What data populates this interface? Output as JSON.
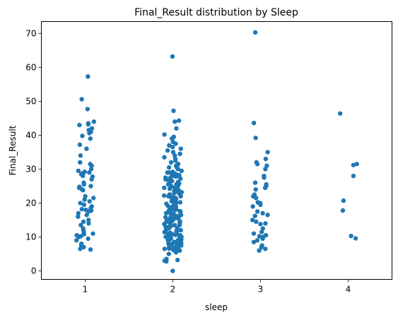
{
  "chart_data": {
    "type": "scatter",
    "subtype": "strip",
    "title": "Final_Result  distribution by Sleep",
    "xlabel": "sleep",
    "ylabel": "Final_Result",
    "categories": [
      "1",
      "2",
      "3",
      "4"
    ],
    "xticks": [
      "1",
      "2",
      "3",
      "4"
    ],
    "yticks": [
      "0",
      "10",
      "20",
      "30",
      "40",
      "50",
      "60",
      "70"
    ],
    "ylim": [
      -2.5,
      73.5
    ],
    "grid": false,
    "legend": "none",
    "color": "#1f77b4",
    "series": [
      {
        "category": "1",
        "values": [
          57.3,
          50.6,
          47.7,
          44.0,
          43.5,
          43.2,
          43.0,
          42.0,
          41.5,
          41.0,
          40.6,
          39.8,
          39.0,
          37.2,
          36.0,
          34.0,
          32.0,
          31.5,
          31.0,
          30.0,
          29.5,
          29.2,
          29.0,
          28.8,
          28.5,
          28.0,
          27.8,
          27.0,
          26.0,
          25.5,
          25.0,
          24.8,
          24.5,
          24.0,
          23.8,
          22.0,
          21.5,
          21.0,
          20.5,
          20.0,
          19.5,
          19.0,
          18.5,
          18.2,
          18.0,
          17.8,
          17.5,
          17.0,
          16.5,
          16.0,
          15.0,
          14.5,
          14.0,
          13.5,
          12.5,
          12.0,
          11.5,
          11.0,
          10.8,
          10.5,
          10.2,
          10.0,
          9.5,
          9.0,
          8.0,
          7.5,
          7.0,
          6.5,
          6.3
        ]
      },
      {
        "category": "2",
        "values": [
          63.2,
          47.2,
          44.3,
          44.0,
          42.0,
          40.2,
          39.5,
          39.0,
          38.0,
          37.5,
          37.0,
          36.5,
          36.0,
          35.5,
          35.0,
          34.5,
          34.0,
          33.5,
          33.0,
          32.5,
          32.0,
          31.5,
          31.0,
          30.5,
          30.0,
          29.5,
          29.2,
          29.0,
          28.8,
          28.5,
          28.2,
          28.0,
          27.8,
          27.5,
          27.2,
          27.0,
          26.8,
          26.5,
          26.2,
          26.0,
          25.8,
          25.5,
          25.2,
          25.0,
          24.8,
          24.5,
          24.2,
          24.0,
          23.8,
          23.5,
          23.2,
          23.0,
          22.8,
          22.5,
          22.2,
          22.0,
          21.8,
          21.5,
          21.2,
          21.0,
          20.8,
          20.5,
          20.2,
          20.0,
          19.8,
          19.5,
          19.2,
          19.0,
          18.8,
          18.5,
          18.2,
          18.0,
          17.8,
          17.5,
          17.2,
          17.0,
          16.8,
          16.5,
          16.2,
          16.0,
          15.8,
          15.5,
          15.2,
          15.0,
          14.8,
          14.5,
          14.2,
          14.0,
          13.8,
          13.5,
          13.2,
          13.0,
          12.8,
          12.5,
          12.2,
          12.0,
          11.8,
          11.5,
          11.2,
          11.0,
          10.8,
          10.5,
          10.2,
          10.0,
          9.8,
          9.5,
          9.2,
          9.0,
          8.8,
          8.5,
          8.2,
          8.0,
          7.8,
          7.5,
          7.2,
          7.0,
          6.8,
          6.5,
          6.2,
          6.0,
          5.5,
          5.0,
          3.5,
          3.2,
          3.0,
          2.8,
          0.0,
          28.5,
          27.5,
          25.5,
          24.5,
          23.5,
          22.5,
          21.5,
          20.5,
          19.5,
          18.5,
          17.5,
          16.5,
          15.5,
          14.5,
          13.5,
          12.5,
          11.5,
          10.5,
          9.5,
          8.5,
          7.5,
          6.5,
          17.0,
          16.0,
          15.0,
          14.0,
          13.0,
          12.0,
          11.0,
          10.0,
          9.0,
          8.0,
          7.0,
          6.0,
          29.0,
          24.0,
          20.0,
          18.0,
          16.2,
          15.8,
          14.6,
          12.6,
          11.4,
          10.6,
          6.6,
          6.4,
          30.5,
          22.0,
          19.0,
          17.6
        ]
      },
      {
        "category": "3",
        "values": [
          70.3,
          43.6,
          39.2,
          35.0,
          33.0,
          32.0,
          31.5,
          31.0,
          30.0,
          28.0,
          27.5,
          26.0,
          25.5,
          25.0,
          24.5,
          24.0,
          22.5,
          22.0,
          21.5,
          20.2,
          20.0,
          19.5,
          19.0,
          17.5,
          17.0,
          16.5,
          16.2,
          15.0,
          14.5,
          14.0,
          13.8,
          12.5,
          11.5,
          11.0,
          10.5,
          10.2,
          10.0,
          9.5,
          9.0,
          8.5,
          7.5,
          7.0,
          6.5,
          6.0
        ]
      },
      {
        "category": "4",
        "values": [
          46.4,
          31.5,
          31.2,
          28.0,
          20.7,
          17.8,
          10.3,
          9.6
        ]
      }
    ]
  }
}
